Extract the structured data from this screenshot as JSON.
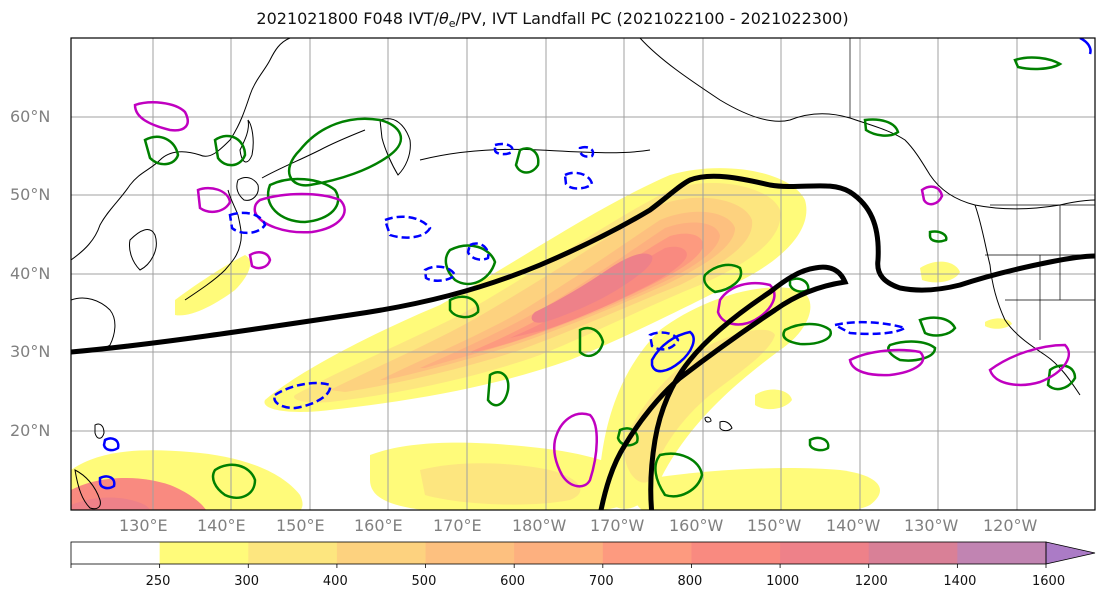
{
  "title": {
    "prefix": "2021021800 F048 IVT/",
    "theta_symbol": "θ",
    "theta_sub": "e",
    "suffix": "/PV, IVT Landfall PC (2021022100 - 2021022300)"
  },
  "map": {
    "lat_labels": [
      "20°N",
      "30°N",
      "40°N",
      "50°N",
      "60°N"
    ],
    "lon_labels": [
      "130°E",
      "140°E",
      "150°E",
      "160°E",
      "170°E",
      "180°W",
      "170°W",
      "160°W",
      "150°W",
      "140°W",
      "130°W",
      "120°W"
    ],
    "contour_colors": {
      "mslp_line": "#000000",
      "theta_e": "#008000",
      "pv_positive": "#c000c0",
      "pv_negative": "#0000ff",
      "coastline": "#000000",
      "gridline": "#a0a0a0"
    },
    "grid": true
  },
  "colorbar": {
    "levels": [
      "250",
      "300",
      "400",
      "500",
      "600",
      "700",
      "800",
      "1000",
      "1200",
      "1400",
      "1600"
    ],
    "colors": [
      "#ffffff",
      "#fffb7a",
      "#fde67f",
      "#fdd27f",
      "#fdc07f",
      "#fdb07f",
      "#fd9a7f",
      "#f98a80",
      "#ee8189",
      "#d98097",
      "#c184b2",
      "#ab7bc6"
    ],
    "extend": "max"
  }
}
